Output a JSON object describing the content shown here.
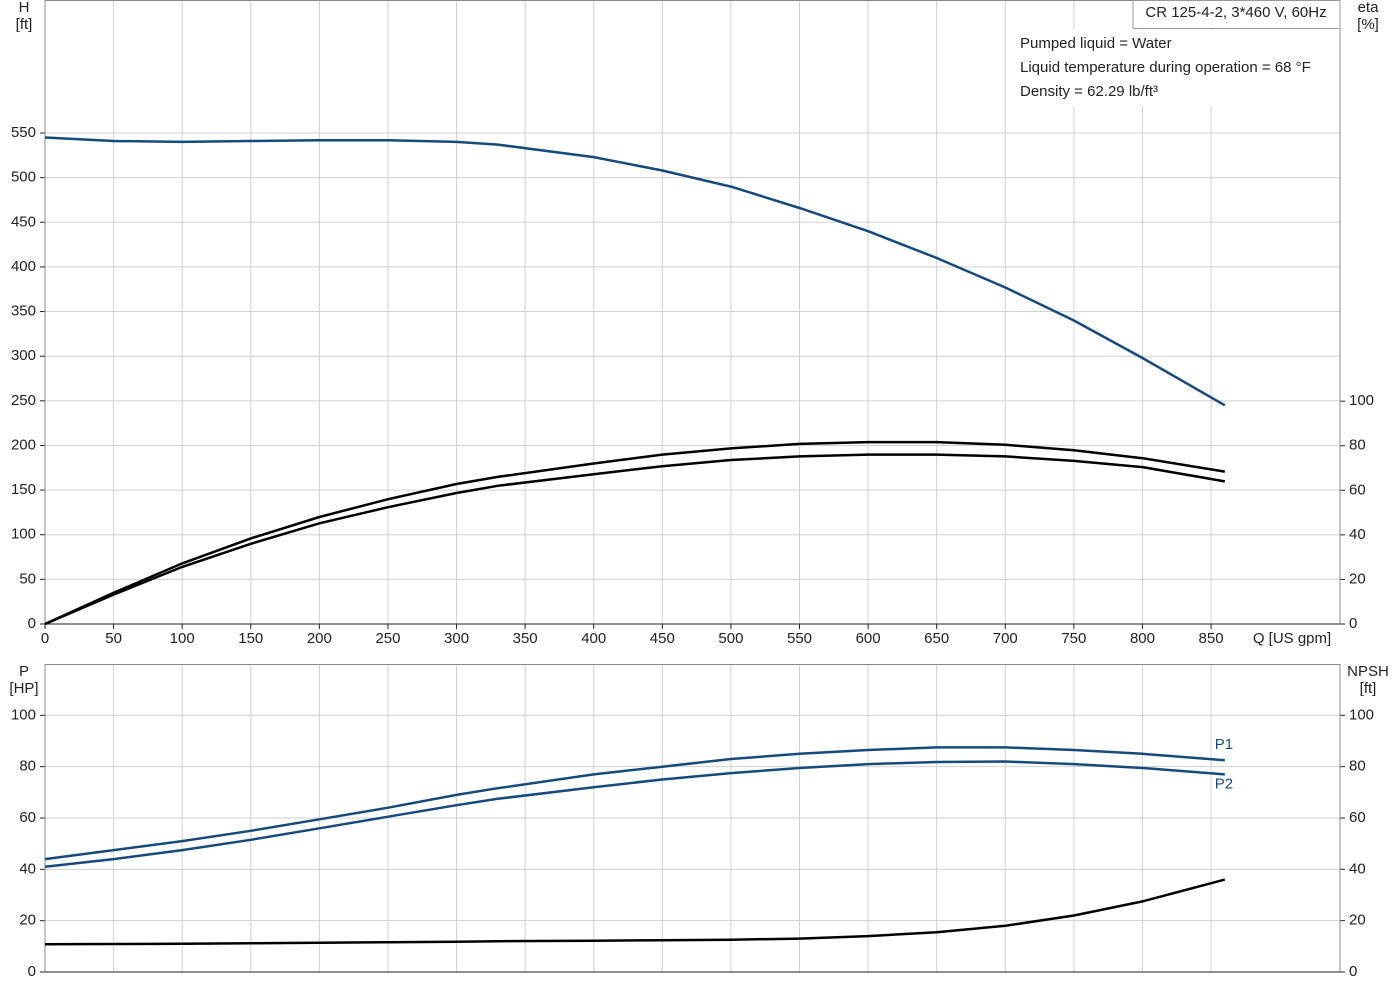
{
  "chart_data": [
    {
      "type": "line",
      "title": "CR 125-4-2, 3*460 V, 60Hz",
      "notes": [
        "Pumped liquid = Water",
        "Liquid temperature during operation = 68 °F",
        "Density = 62.29 lb/ft³"
      ],
      "ylabel": "H",
      "yunit": "[ft]",
      "y2label": "eta",
      "y2unit": "[%]",
      "xlabel": "Q [US gpm]",
      "x": [
        0,
        50,
        100,
        150,
        200,
        250,
        300,
        330,
        400,
        450,
        500,
        550,
        600,
        650,
        700,
        750,
        800,
        860
      ],
      "xlim": [
        0,
        944
      ],
      "xticks": [
        0,
        50,
        100,
        150,
        200,
        250,
        300,
        350,
        400,
        450,
        500,
        550,
        600,
        650,
        700,
        750,
        800,
        850
      ],
      "ylim": [
        0,
        699
      ],
      "yticks": [
        0,
        50,
        100,
        150,
        200,
        250,
        300,
        350,
        400,
        450,
        500,
        550
      ],
      "y2lim": [
        0,
        280
      ],
      "y2ticks": [
        0,
        20,
        40,
        60,
        80,
        100
      ],
      "grid": true,
      "series": [
        {
          "color": "#174a7c",
          "values": [
            545,
            541,
            540,
            541,
            542,
            542,
            540,
            537,
            523,
            508,
            490,
            466,
            440,
            410,
            377,
            340,
            298,
            245
          ]
        },
        {
          "color": "#000000",
          "axis": "y2",
          "values": [
            0,
            14,
            27.2,
            38.4,
            48,
            56,
            62.8,
            66,
            72,
            76,
            78.8,
            80.8,
            81.6,
            81.6,
            80.4,
            78,
            74.4,
            68.4
          ]
        },
        {
          "color": "#000000",
          "axis": "y2",
          "values": [
            0,
            13.2,
            25.6,
            36,
            45.2,
            52.4,
            58.8,
            62,
            67.2,
            70.8,
            73.6,
            75.2,
            76,
            76,
            75.2,
            73.2,
            70.4,
            64
          ]
        }
      ]
    },
    {
      "type": "line",
      "ylabel": "P",
      "yunit": "[HP]",
      "y2label": "NPSH",
      "y2unit": "[ft]",
      "x": [
        0,
        50,
        100,
        150,
        200,
        250,
        300,
        330,
        400,
        450,
        500,
        550,
        600,
        650,
        700,
        750,
        800,
        860
      ],
      "xlim": [
        0,
        944
      ],
      "ylim": [
        0,
        120
      ],
      "yticks": [
        0,
        20,
        40,
        60,
        80,
        100
      ],
      "y2lim": [
        0,
        120
      ],
      "y2ticks": [
        0,
        20,
        40,
        60,
        80,
        100
      ],
      "grid": true,
      "series": [
        {
          "name": "P1",
          "color": "#174a7c",
          "values": [
            44,
            47.5,
            51,
            55,
            59.5,
            64,
            69,
            71.6,
            77,
            80,
            83,
            85,
            86.5,
            87.5,
            87.5,
            86.5,
            85,
            82.5
          ]
        },
        {
          "name": "P2",
          "color": "#174a7c",
          "values": [
            41,
            44,
            47.5,
            51.5,
            56,
            60.5,
            65,
            67.5,
            72,
            75,
            77.5,
            79.5,
            81,
            81.8,
            82,
            81,
            79.5,
            77
          ]
        },
        {
          "color": "#000000",
          "axis": "y2",
          "values": [
            10.8,
            10.9,
            11,
            11.2,
            11.4,
            11.6,
            11.8,
            12,
            12.2,
            12.4,
            12.6,
            13,
            14,
            15.5,
            18,
            22,
            27.5,
            36
          ]
        }
      ]
    }
  ]
}
